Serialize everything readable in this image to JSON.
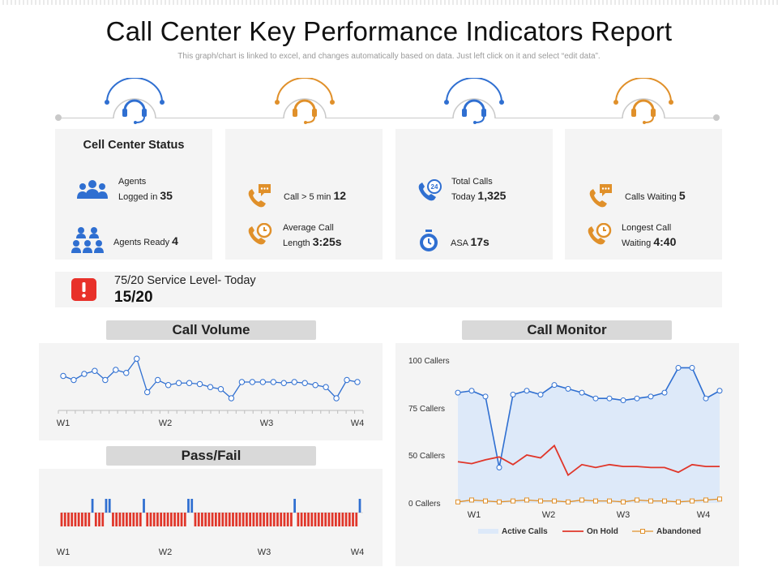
{
  "header": {
    "title": "Call Center Key Performance Indicators Report",
    "subtitle": "This graph/chart is linked to excel, and changes automatically based on data. Just left click on it and select “edit data”."
  },
  "colors": {
    "blue": "#2f6fd1",
    "orange": "#e0902a",
    "red": "#e0362a",
    "card_bg": "#f4f4f4",
    "tab_bg": "#d9d9d9"
  },
  "cards": [
    {
      "title": "Cell Center Status",
      "m1_label_a": "Agents",
      "m1_label_b": "Logged in",
      "m1_value": "35",
      "m1_icon": "agents-group-icon",
      "m2_label": "Agents Ready",
      "m2_value": "4",
      "m2_icon": "agents-team-icon"
    },
    {
      "m1_label": "Call > 5 min",
      "m1_value": "12",
      "m1_icon": "phone-chat-icon",
      "m2_label_a": "Average Call",
      "m2_label_b": "Length",
      "m2_value": "3:25s",
      "m2_icon": "phone-clock-icon"
    },
    {
      "m1_label_a": "Total Calls",
      "m1_label_b": "Today",
      "m1_value": "1,325",
      "m1_icon": "phone-24h-icon",
      "m2_label": "ASA",
      "m2_value": "17s",
      "m2_icon": "stopwatch-icon"
    },
    {
      "m1_label": "Calls Waiting",
      "m1_value": "5",
      "m1_icon": "phone-chat-icon",
      "m2_label_a": "Longest Call",
      "m2_label_b": "Waiting",
      "m2_value": "4:40",
      "m2_icon": "phone-clock-icon"
    }
  ],
  "service_level": {
    "label": "75/20 Service Level- Today",
    "value": "15/20",
    "icon": "alert-icon"
  },
  "sections": {
    "call_volume": "Call Volume",
    "pass_fail": "Pass/Fail",
    "call_monitor": "Call Monitor"
  },
  "chart_data": [
    {
      "id": "call_volume",
      "type": "line",
      "title": "Call Volume",
      "x_labels": [
        "W1",
        "W2",
        "W3",
        "W4"
      ],
      "values": [
        3.4,
        3.0,
        3.6,
        3.9,
        3.0,
        4.0,
        3.7,
        5.1,
        1.8,
        3.0,
        2.5,
        2.7,
        2.7,
        2.6,
        2.3,
        2.1,
        1.2,
        2.8,
        2.8,
        2.8,
        2.8,
        2.7,
        2.8,
        2.7,
        2.5,
        2.3,
        1.2,
        3.0,
        2.8
      ],
      "ylim": [
        0,
        6
      ]
    },
    {
      "id": "pass_fail",
      "type": "bar",
      "title": "Pass/Fail",
      "x_labels": [
        "W1",
        "W2",
        "W3",
        "W4"
      ],
      "values": [
        -1,
        -1,
        -1,
        -1,
        -1,
        -1,
        -1,
        -1,
        -1,
        1,
        -1,
        -1,
        -1,
        1,
        1,
        -1,
        -1,
        -1,
        -1,
        -1,
        -1,
        -1,
        -1,
        -1,
        1,
        -1,
        -1,
        -1,
        -1,
        -1,
        -1,
        -1,
        -1,
        -1,
        -1,
        -1,
        -1,
        1,
        1,
        -1,
        -1,
        -1,
        -1,
        -1,
        -1,
        -1,
        -1,
        -1,
        -1,
        -1,
        -1,
        -1,
        -1,
        -1,
        -1,
        -1,
        -1,
        -1,
        -1,
        -1,
        -1,
        -1,
        -1,
        -1,
        -1,
        -1,
        -1,
        -1,
        1,
        -1,
        -1,
        -1,
        -1,
        -1,
        -1,
        -1,
        -1,
        -1,
        -1,
        -1,
        -1,
        -1,
        -1,
        -1,
        -1,
        -1,
        -1,
        1
      ],
      "colors": {
        "pass": "#2f6fd1",
        "fail": "#e0362a"
      }
    },
    {
      "id": "call_monitor",
      "type": "line",
      "title": "Call Monitor",
      "x_labels": [
        "W1",
        "W2",
        "W3",
        "W4"
      ],
      "y_ticks": [
        "0 Callers",
        "50 Callers",
        "75 Callers",
        "100 Callers"
      ],
      "series": [
        {
          "name": "Active Calls",
          "type": "area",
          "color": "#2f6fd1",
          "values": [
            83,
            84,
            81,
            37,
            82,
            84,
            82,
            87,
            85,
            83,
            80,
            80,
            79,
            80,
            81,
            83,
            96,
            96,
            80,
            84
          ]
        },
        {
          "name": "On Hold",
          "type": "line",
          "color": "#e0362a",
          "values": [
            43,
            41,
            45,
            48,
            40,
            50,
            47,
            55,
            29,
            40,
            37,
            40,
            38,
            38,
            37,
            37,
            32,
            40,
            38,
            38
          ]
        },
        {
          "name": "Abandoned",
          "type": "line",
          "color": "#e0902a",
          "values": [
            1,
            3,
            2,
            1,
            2,
            3,
            2,
            2,
            1,
            3,
            2,
            2,
            1,
            3,
            2,
            2,
            1,
            2,
            3,
            4
          ]
        }
      ],
      "ylim": [
        0,
        100
      ]
    }
  ]
}
